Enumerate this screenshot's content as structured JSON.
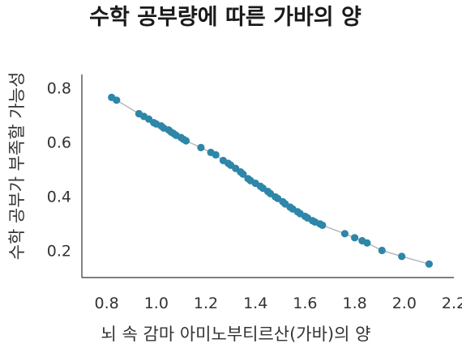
{
  "chart_data": {
    "type": "scatter",
    "title": "수학 공부량에 따른 가바의 양",
    "xlabel": "뇌 속 감마 아미노부티르산(가바)의 양",
    "ylabel": "수학 공부가 부족할 가능성",
    "xlim": [
      0.7,
      2.2
    ],
    "ylim": [
      0.1,
      0.85
    ],
    "xticks": [
      "0.8",
      "1.0",
      "1.2",
      "1.4",
      "1.6",
      "1.8",
      "2.0",
      "2.2"
    ],
    "yticks": [
      "0.2",
      "0.4",
      "0.6",
      "0.8"
    ],
    "grid": false,
    "trendline": true,
    "colors": {
      "point": "#2e86a8",
      "trendline": "#b8b8b8"
    },
    "points": [
      [
        0.82,
        0.765
      ],
      [
        0.84,
        0.755
      ],
      [
        0.93,
        0.705
      ],
      [
        0.95,
        0.695
      ],
      [
        0.97,
        0.685
      ],
      [
        0.99,
        0.672
      ],
      [
        1.0,
        0.667
      ],
      [
        1.02,
        0.66
      ],
      [
        1.03,
        0.652
      ],
      [
        1.05,
        0.645
      ],
      [
        1.06,
        0.637
      ],
      [
        1.07,
        0.632
      ],
      [
        1.08,
        0.625
      ],
      [
        1.1,
        0.617
      ],
      [
        1.11,
        0.61
      ],
      [
        1.12,
        0.605
      ],
      [
        1.18,
        0.58
      ],
      [
        1.22,
        0.562
      ],
      [
        1.24,
        0.553
      ],
      [
        1.27,
        0.532
      ],
      [
        1.29,
        0.522
      ],
      [
        1.3,
        0.515
      ],
      [
        1.32,
        0.503
      ],
      [
        1.34,
        0.49
      ],
      [
        1.35,
        0.482
      ],
      [
        1.37,
        0.465
      ],
      [
        1.38,
        0.458
      ],
      [
        1.4,
        0.448
      ],
      [
        1.42,
        0.437
      ],
      [
        1.43,
        0.43
      ],
      [
        1.45,
        0.418
      ],
      [
        1.46,
        0.41
      ],
      [
        1.48,
        0.398
      ],
      [
        1.49,
        0.392
      ],
      [
        1.51,
        0.38
      ],
      [
        1.52,
        0.372
      ],
      [
        1.54,
        0.36
      ],
      [
        1.55,
        0.353
      ],
      [
        1.57,
        0.343
      ],
      [
        1.58,
        0.336
      ],
      [
        1.6,
        0.326
      ],
      [
        1.61,
        0.32
      ],
      [
        1.63,
        0.31
      ],
      [
        1.64,
        0.305
      ],
      [
        1.66,
        0.298
      ],
      [
        1.67,
        0.293
      ],
      [
        1.76,
        0.262
      ],
      [
        1.8,
        0.247
      ],
      [
        1.83,
        0.236
      ],
      [
        1.85,
        0.228
      ],
      [
        1.91,
        0.2
      ],
      [
        1.99,
        0.178
      ],
      [
        2.1,
        0.15
      ]
    ]
  }
}
